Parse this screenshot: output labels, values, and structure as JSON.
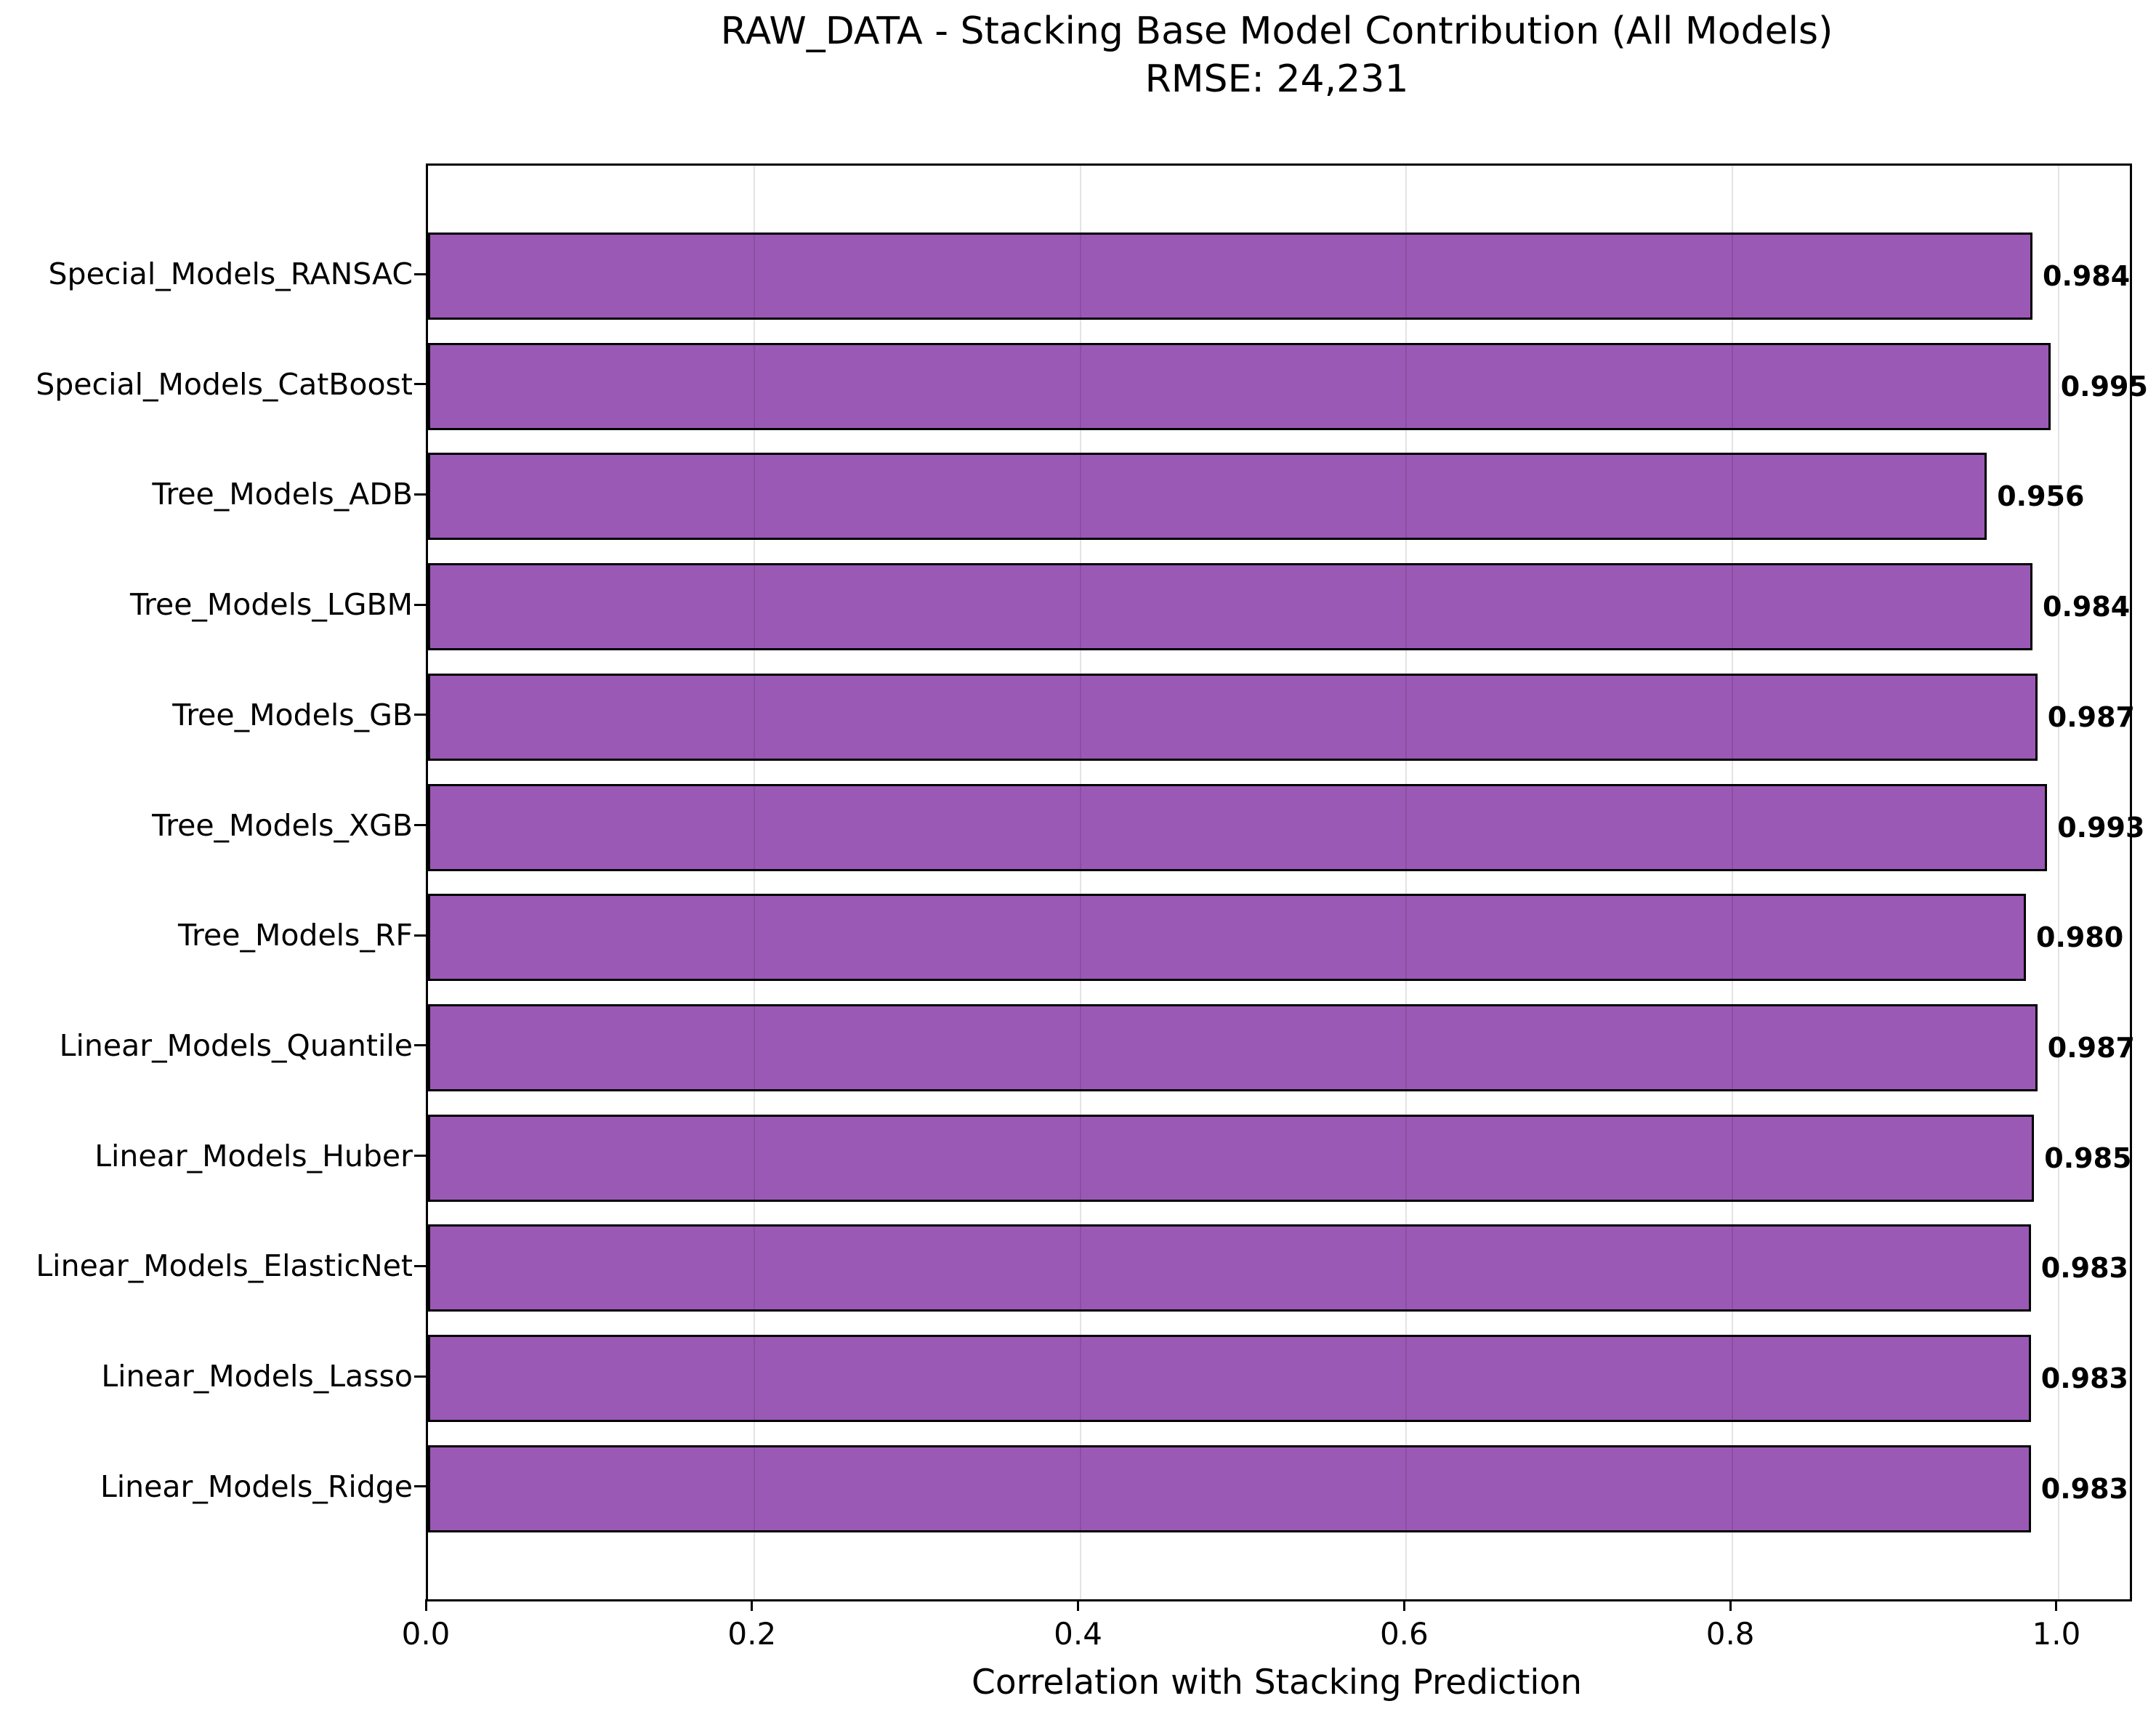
{
  "title": "RAW_DATA - Stacking Base Model Contribution (All Models)",
  "subtitle": "RMSE: 24,231",
  "chart_data": {
    "type": "bar",
    "orientation": "horizontal",
    "title": "RAW_DATA - Stacking Base Model Contribution (All Models)",
    "subtitle": "RMSE: 24,231",
    "xlabel": "Correlation with Stacking Prediction",
    "ylabel": "",
    "categories": [
      "Special_Models_RANSAC",
      "Special_Models_CatBoost",
      "Tree_Models_ADB",
      "Tree_Models_LGBM",
      "Tree_Models_GB",
      "Tree_Models_XGB",
      "Tree_Models_RF",
      "Linear_Models_Quantile",
      "Linear_Models_Huber",
      "Linear_Models_ElasticNet",
      "Linear_Models_Lasso",
      "Linear_Models_Ridge"
    ],
    "values": [
      0.984,
      0.995,
      0.956,
      0.984,
      0.987,
      0.993,
      0.98,
      0.987,
      0.985,
      0.983,
      0.983,
      0.983
    ],
    "value_labels": [
      "0.984",
      "0.995",
      "0.956",
      "0.984",
      "0.987",
      "0.993",
      "0.980",
      "0.987",
      "0.985",
      "0.983",
      "0.983",
      "0.983"
    ],
    "xlim": [
      0,
      1.0437
    ],
    "xticks": [
      0.0,
      0.2,
      0.4,
      0.6,
      0.8,
      1.0
    ],
    "xtick_labels": [
      "0.0",
      "0.2",
      "0.4",
      "0.6",
      "0.8",
      "1.0"
    ],
    "grid": true,
    "legend": "none",
    "bar_color": "#9b59b6",
    "bar_edge_color": "#000000",
    "grid_color": "rgba(0,0,0,0.11)",
    "text_color": "#000000"
  }
}
